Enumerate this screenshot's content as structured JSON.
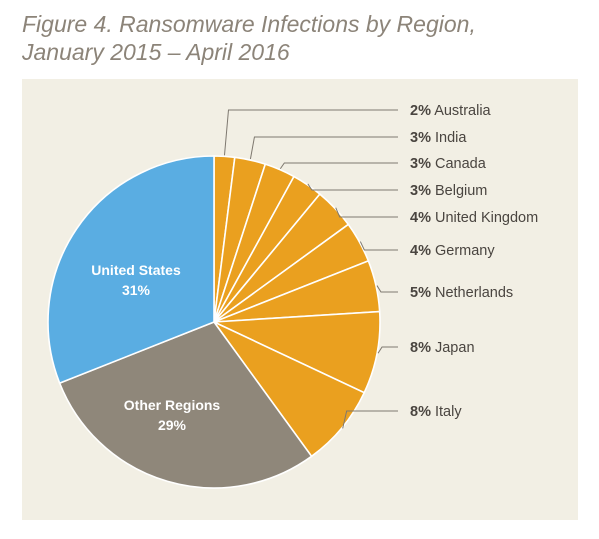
{
  "chart_data": {
    "type": "pie",
    "title_line1": "Figure 4. Ransomware Infections by Region,",
    "title_line2": "January 2015 – April 2016",
    "slices": [
      {
        "name": "Australia",
        "value": 2,
        "label": "2%",
        "color": "#eaa01f"
      },
      {
        "name": "India",
        "value": 3,
        "label": "3%",
        "color": "#eaa01f"
      },
      {
        "name": "Canada",
        "value": 3,
        "label": "3%",
        "color": "#eaa01f"
      },
      {
        "name": "Belgium",
        "value": 3,
        "label": "3%",
        "color": "#eaa01f"
      },
      {
        "name": "United Kingdom",
        "value": 4,
        "label": "4%",
        "color": "#eaa01f"
      },
      {
        "name": "Germany",
        "value": 4,
        "label": "4%",
        "color": "#eaa01f"
      },
      {
        "name": "Netherlands",
        "value": 5,
        "label": "5%",
        "color": "#eaa01f"
      },
      {
        "name": "Japan",
        "value": 8,
        "label": "8%",
        "color": "#eaa01f"
      },
      {
        "name": "Italy",
        "value": 8,
        "label": "8%",
        "color": "#eaa01f"
      },
      {
        "name": "Other Regions",
        "value": 29,
        "label": "29%",
        "color": "#8f877a"
      },
      {
        "name": "United States",
        "value": 31,
        "label": "31%",
        "color": "#5aade2"
      }
    ]
  }
}
